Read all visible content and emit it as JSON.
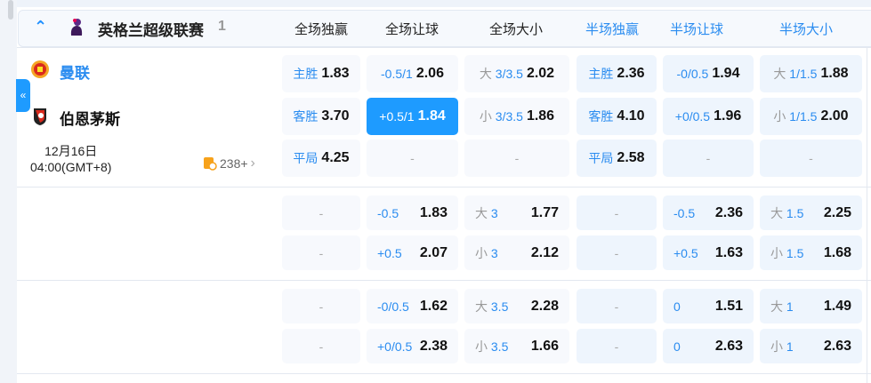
{
  "league": {
    "name": "英格兰超级联赛",
    "count": "1",
    "collapse_glyph": "^"
  },
  "columns": [
    "全场独赢",
    "全场让球",
    "全场大小",
    "半场独赢",
    "半场让球",
    "半场大小"
  ],
  "match": {
    "home": "曼联",
    "away": "伯恩茅斯",
    "date": "12月16日",
    "time": "04:00(GMT+8)",
    "more": "238+"
  },
  "sidebar_toggle": "«",
  "colors": {
    "accent": "#1e9bff",
    "column_header_blue": "#2a8cf0"
  },
  "blocks": [
    [
      [
        {
          "l": "主胜",
          "o": "1.83"
        },
        {
          "l": "-0.5/1",
          "o": "2.06"
        },
        {
          "p": "大",
          "l": "3/3.5",
          "o": "2.02"
        },
        {
          "l": "主胜",
          "o": "2.36"
        },
        {
          "l": "-0/0.5",
          "o": "1.94"
        },
        {
          "p": "大",
          "l": "1/1.5",
          "o": "1.88"
        }
      ],
      [
        {
          "l": "客胜",
          "o": "3.70"
        },
        {
          "l": "+0.5/1",
          "o": "1.84",
          "selected": true
        },
        {
          "p": "小",
          "l": "3/3.5",
          "o": "1.86"
        },
        {
          "l": "客胜",
          "o": "4.10"
        },
        {
          "l": "+0/0.5",
          "o": "1.96"
        },
        {
          "p": "小",
          "l": "1/1.5",
          "o": "2.00"
        }
      ],
      [
        {
          "l": "平局",
          "o": "4.25"
        },
        {
          "d": "-"
        },
        {
          "d": "-"
        },
        {
          "l": "平局",
          "o": "2.58"
        },
        {
          "d": "-"
        },
        {
          "d": "-"
        }
      ]
    ],
    [
      [
        {
          "d": "-"
        },
        {
          "l": "-0.5",
          "o": "1.83"
        },
        {
          "p": "大",
          "l": "3",
          "o": "1.77"
        },
        {
          "d": "-"
        },
        {
          "l": "-0.5",
          "o": "2.36"
        },
        {
          "p": "大",
          "l": "1.5",
          "o": "2.25"
        }
      ],
      [
        {
          "d": "-"
        },
        {
          "l": "+0.5",
          "o": "2.07"
        },
        {
          "p": "小",
          "l": "3",
          "o": "2.12"
        },
        {
          "d": "-"
        },
        {
          "l": "+0.5",
          "o": "1.63"
        },
        {
          "p": "小",
          "l": "1.5",
          "o": "1.68"
        }
      ]
    ],
    [
      [
        {
          "d": "-"
        },
        {
          "l": "-0/0.5",
          "o": "1.62"
        },
        {
          "p": "大",
          "l": "3.5",
          "o": "2.28"
        },
        {
          "d": "-"
        },
        {
          "l": "0",
          "o": "1.51"
        },
        {
          "p": "大",
          "l": "1",
          "o": "1.49"
        }
      ],
      [
        {
          "d": "-"
        },
        {
          "l": "+0/0.5",
          "o": "2.38"
        },
        {
          "p": "小",
          "l": "3.5",
          "o": "1.66"
        },
        {
          "d": "-"
        },
        {
          "l": "0",
          "o": "2.63"
        },
        {
          "p": "小",
          "l": "1",
          "o": "2.63"
        }
      ]
    ]
  ]
}
